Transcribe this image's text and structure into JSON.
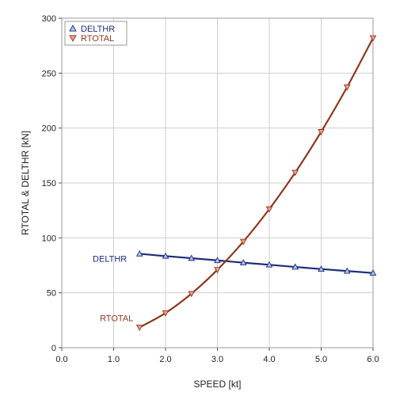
{
  "chart_data": {
    "type": "line",
    "title": "",
    "xlabel": "SPEED [kt]",
    "ylabel": "RTOTAL & DELTHR [kN]",
    "xlim": [
      0,
      6
    ],
    "ylim": [
      0,
      300
    ],
    "x_ticks": [
      0,
      1,
      2,
      3,
      4,
      5,
      6
    ],
    "x_tick_labels": [
      "0.0",
      "1.0",
      "2.0",
      "3.0",
      "4.0",
      "5.0",
      "6.0"
    ],
    "y_ticks": [
      0,
      50,
      100,
      150,
      200,
      250,
      300
    ],
    "y_tick_labels": [
      "0",
      "50",
      "100",
      "150",
      "200",
      "250",
      "300"
    ],
    "grid": true,
    "legend_position": "top-left",
    "series": [
      {
        "name": "DELTHR",
        "color": "#1f2d7a",
        "marker": "triangle-up",
        "marker_fill": "#a9c3ee",
        "annotation": "DELTHR",
        "x": [
          1.5,
          2.0,
          2.5,
          3.0,
          3.5,
          4.0,
          4.5,
          5.0,
          5.5,
          6.0
        ],
        "y": [
          85.5,
          83.4,
          81.5,
          79.5,
          77.4,
          75.5,
          73.5,
          71.6,
          69.8,
          68.0
        ]
      },
      {
        "name": "RTOTAL",
        "color": "#8b3a1f",
        "marker": "triangle-down",
        "marker_fill": "#f29a8c",
        "annotation": "RTOTAL",
        "x": [
          1.5,
          2.0,
          2.5,
          3.0,
          3.5,
          4.0,
          4.5,
          5.0,
          5.5,
          6.0
        ],
        "y": [
          18.5,
          31.6,
          49.2,
          71.0,
          96.6,
          126.2,
          159.5,
          196.6,
          237.3,
          282.0
        ]
      }
    ]
  }
}
